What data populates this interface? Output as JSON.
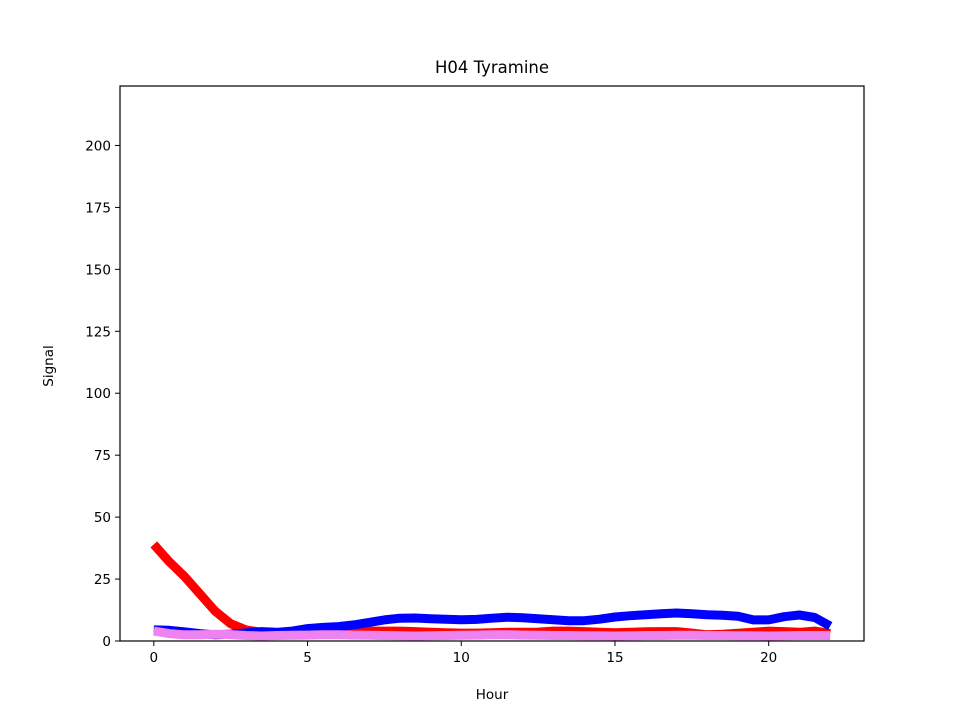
{
  "chart_data": {
    "type": "line",
    "title": "H04 Tyramine",
    "xlabel": "Hour",
    "ylabel": "Signal",
    "xlim": [
      -1.1,
      23.1
    ],
    "ylim": [
      0,
      224
    ],
    "xticks": [
      0,
      5,
      10,
      15,
      20
    ],
    "yticks": [
      0,
      25,
      50,
      75,
      100,
      125,
      150,
      175,
      200
    ],
    "grid": false,
    "legend": "none",
    "x": [
      0,
      0.5,
      1,
      1.5,
      2,
      2.5,
      3,
      3.5,
      4,
      4.5,
      5,
      5.5,
      6,
      6.5,
      7,
      7.5,
      8,
      8.5,
      9,
      9.5,
      10,
      10.5,
      11,
      11.5,
      12,
      12.5,
      13,
      13.5,
      14,
      14.5,
      15,
      15.5,
      16,
      16.5,
      17,
      17.5,
      18,
      18.5,
      19,
      19.5,
      20,
      20.5,
      21,
      21.5,
      22
    ],
    "series": [
      {
        "color": "#ff0000",
        "values": [
          39,
          32,
          26,
          19,
          12,
          7,
          4.5,
          3.5,
          3,
          3,
          3.2,
          3.5,
          3.5,
          3.5,
          4,
          4,
          4,
          3.8,
          3.5,
          3.3,
          3.2,
          3.2,
          3.3,
          3.5,
          3.5,
          3.6,
          4,
          4,
          3.8,
          3.5,
          3.3,
          3.5,
          3.7,
          3.8,
          3.8,
          3.2,
          2.5,
          2.7,
          3.1,
          3.5,
          4,
          3.8,
          3.5,
          4,
          3
        ]
      },
      {
        "color": "#0000ff",
        "values": [
          4.5,
          4.3,
          3.7,
          3,
          2.5,
          2.8,
          3.3,
          3.8,
          3.5,
          4,
          5,
          5.5,
          5.8,
          6.5,
          7.5,
          8.5,
          9.2,
          9.3,
          9,
          8.8,
          8.6,
          8.7,
          9.2,
          9.6,
          9.4,
          9,
          8.6,
          8.2,
          8.2,
          8.8,
          9.7,
          10.2,
          10.6,
          11,
          11.3,
          11,
          10.6,
          10.4,
          10,
          8.5,
          8.5,
          9.8,
          10.5,
          9.5,
          6
        ]
      },
      {
        "color": "#ee82ee",
        "values": [
          4,
          3,
          2.5,
          2.5,
          2.7,
          2.6,
          2.2,
          2,
          2.2,
          2.3,
          2.4,
          2.5,
          2.5,
          2.4,
          2.3,
          2.2,
          2.1,
          2,
          2.1,
          2.2,
          2.3,
          2.4,
          2.5,
          2.5,
          2.4,
          2.3,
          2.2,
          2.2,
          2.1,
          2.1,
          2,
          2.1,
          2.2,
          2.2,
          2.3,
          2.3,
          2.2,
          2.2,
          2.1,
          2.1,
          2,
          2.1,
          2.2,
          2.2,
          2.2
        ]
      }
    ]
  }
}
